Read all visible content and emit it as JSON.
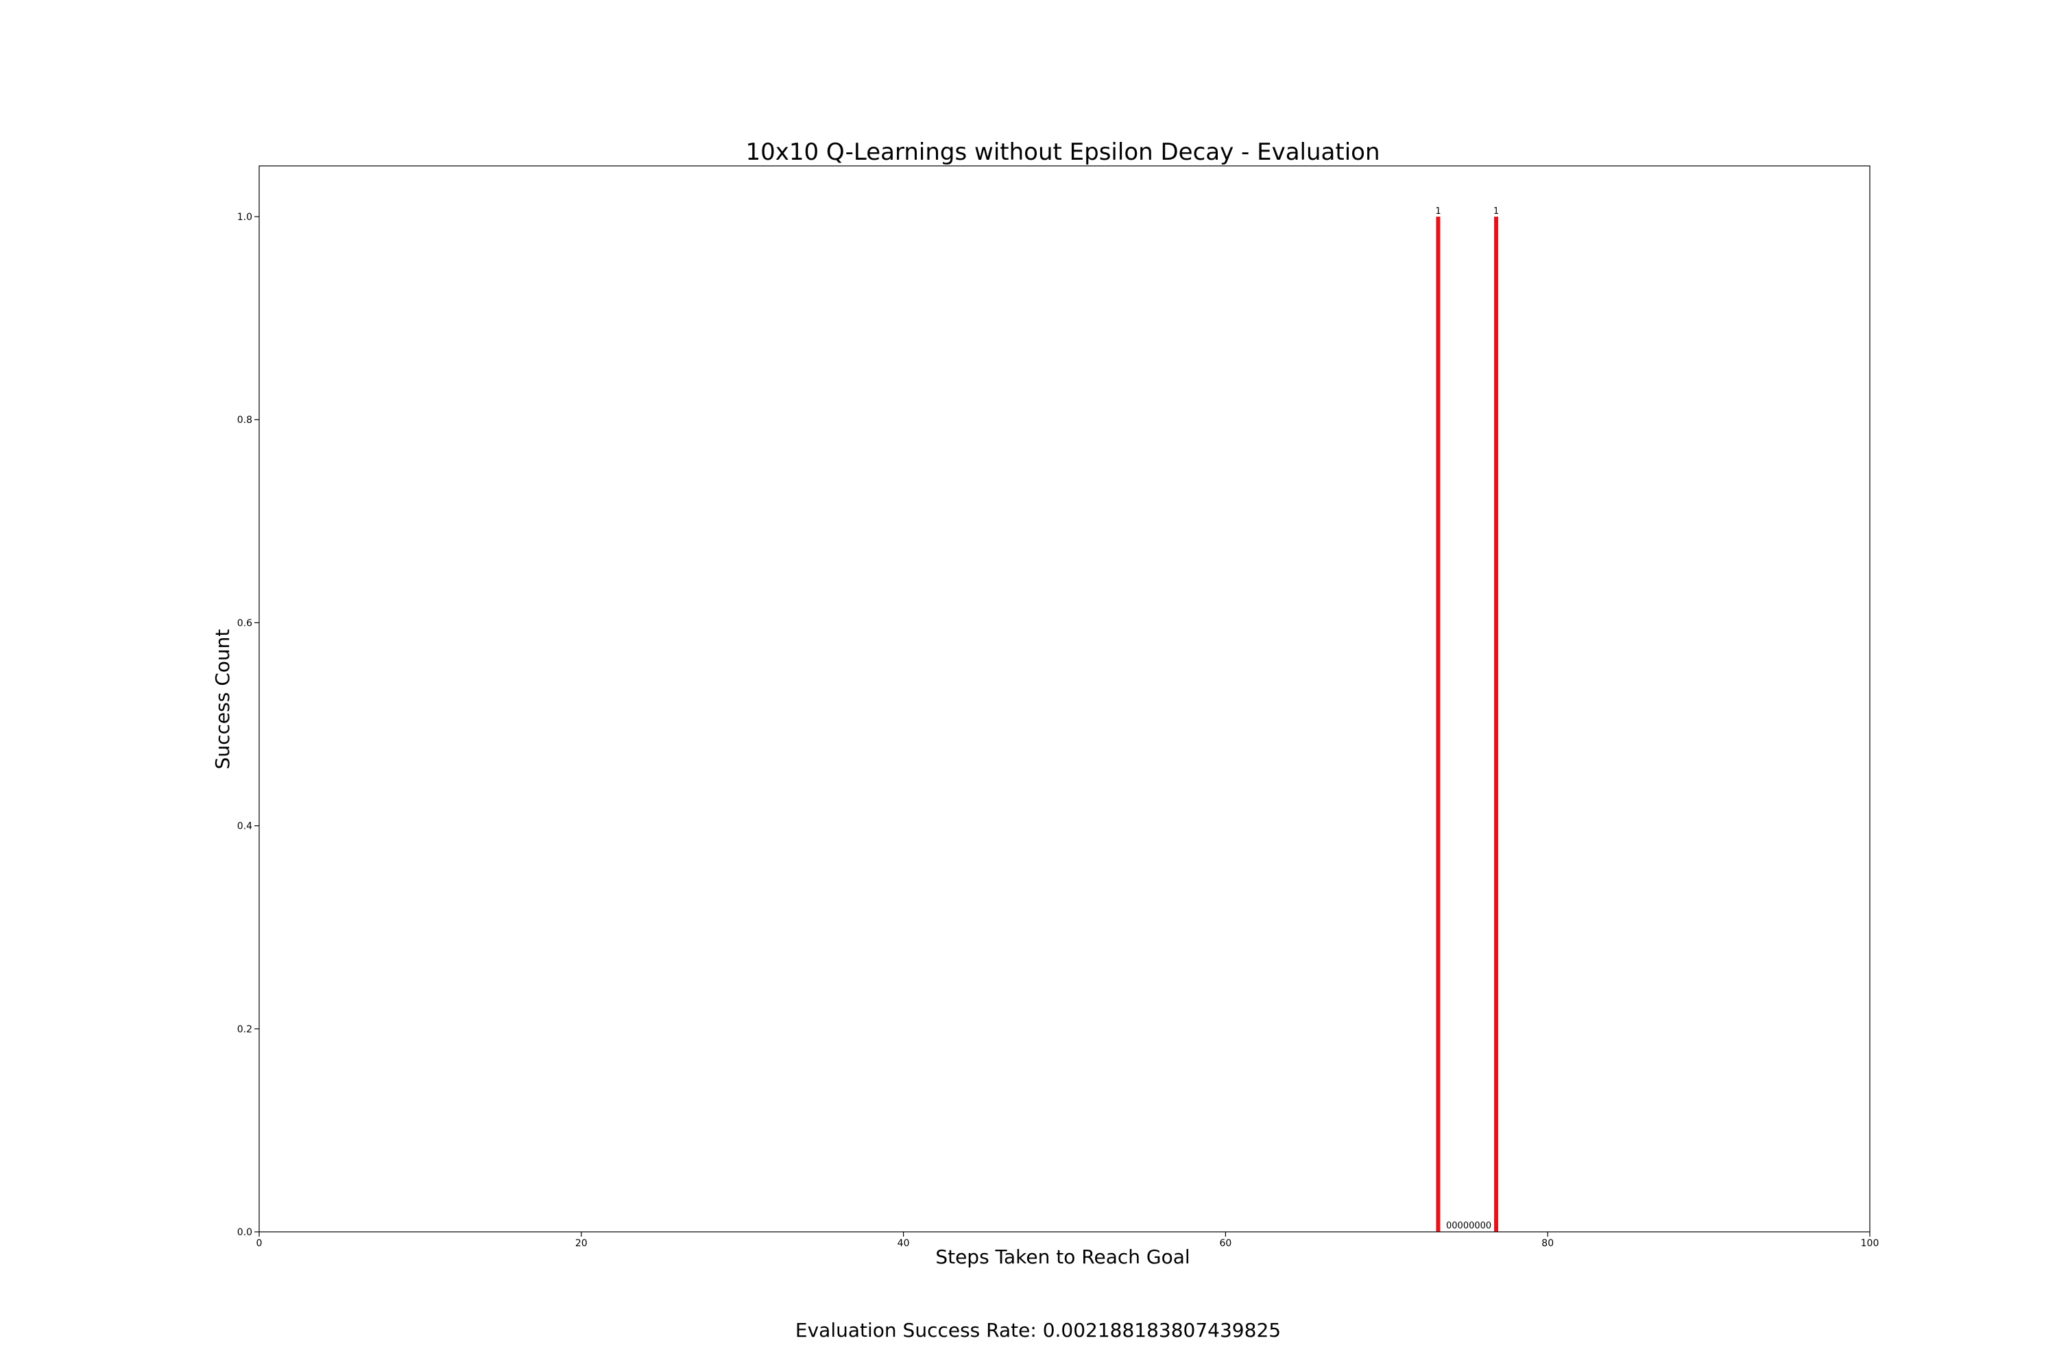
{
  "chart_data": {
    "type": "bar",
    "title": "10x10 Q-Learnings without Epsilon Decay - Evaluation",
    "xlabel": "Steps Taken to Reach Goal",
    "ylabel": "Success Count",
    "xlim": [
      0,
      100
    ],
    "ylim": [
      0,
      1.05
    ],
    "xticks": [
      0,
      20,
      40,
      60,
      80,
      100
    ],
    "xtick_labels": [
      "0",
      "20",
      "40",
      "60",
      "80",
      "100"
    ],
    "yticks": [
      0.0,
      0.2,
      0.4,
      0.6,
      0.8,
      1.0
    ],
    "ytick_labels": [
      "0.0",
      "0.2",
      "0.4",
      "0.6",
      "0.8",
      "1.0"
    ],
    "grid": false,
    "bar_color": "#e8121a",
    "bars": [
      {
        "x": 73.2,
        "value": 1,
        "label": "1"
      },
      {
        "x": 76.8,
        "value": 1,
        "label": "1"
      }
    ],
    "zero_labels_text": "00000000",
    "zero_labels_x": 75.1,
    "footer": "Evaluation Success Rate: 0.002188183807439825"
  }
}
